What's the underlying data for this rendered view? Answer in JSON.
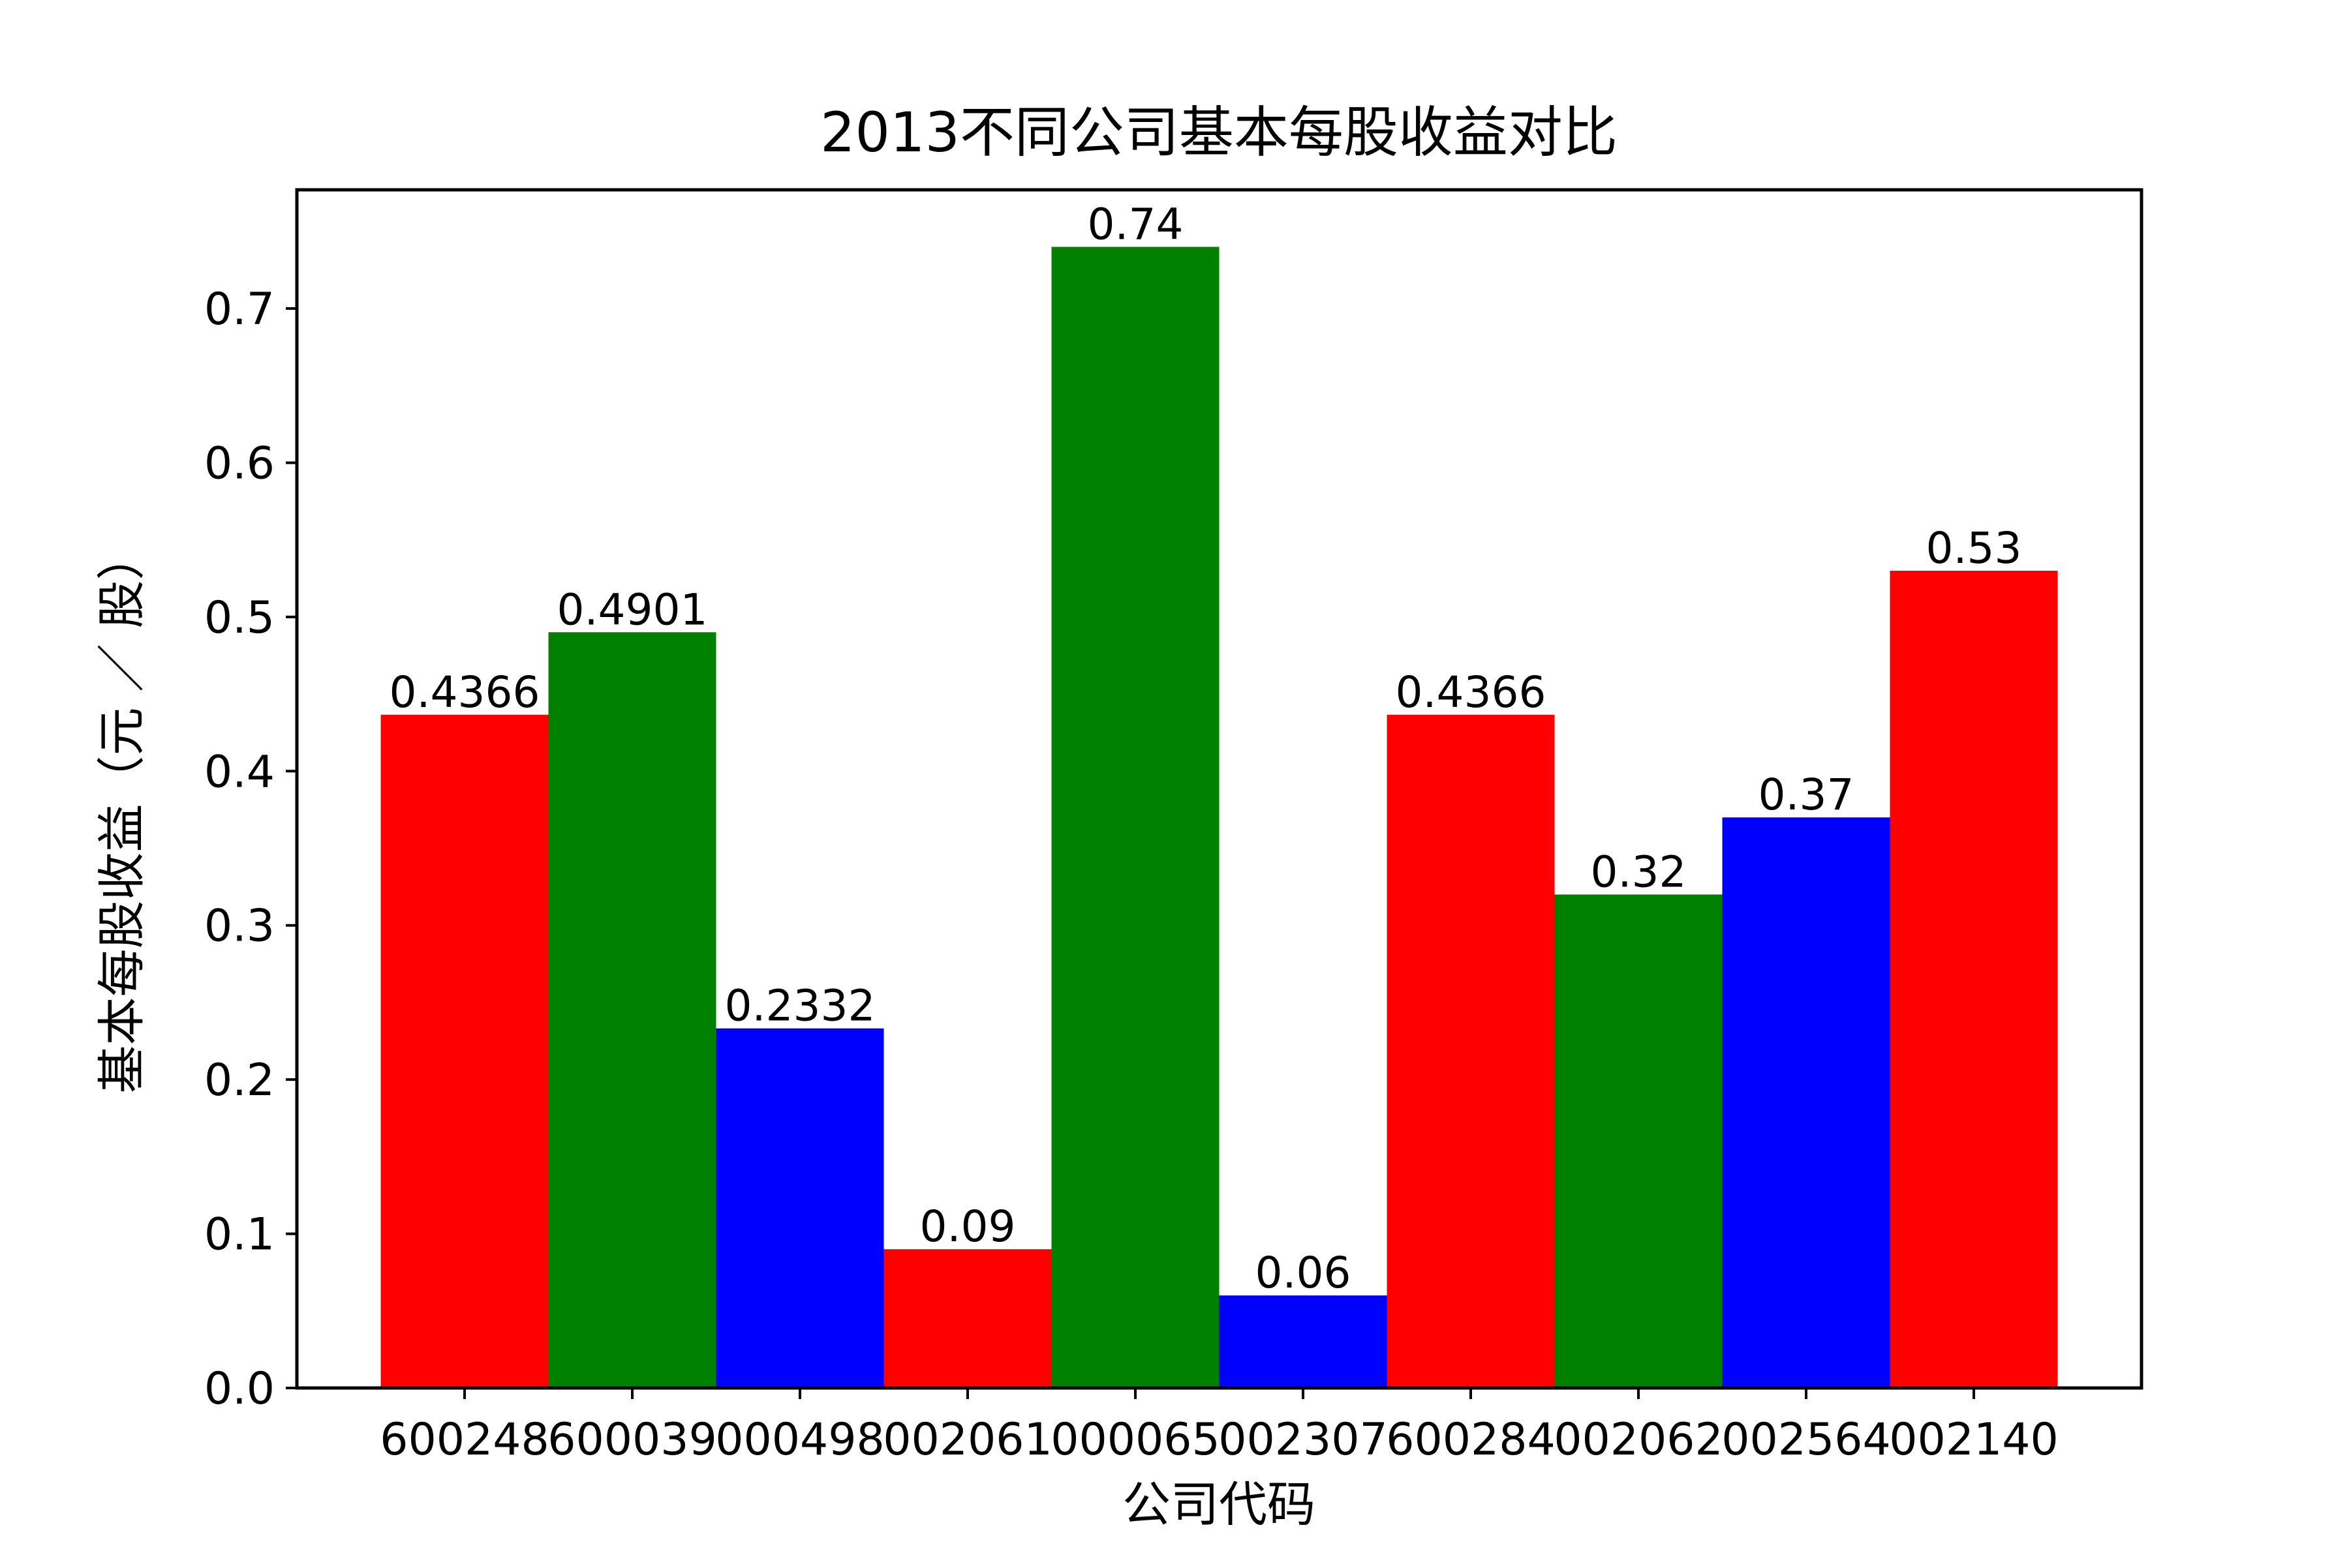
{
  "chart_data": {
    "type": "bar",
    "title": "2013不同公司基本每股收益对比",
    "xlabel": "公司代码",
    "ylabel": "基本每股收益（元 ／ 股）",
    "categories": [
      "600248",
      "600039",
      "000498",
      "002061",
      "000065",
      "002307",
      "600284",
      "002062",
      "002564",
      "002140"
    ],
    "values": [
      0.4366,
      0.4901,
      0.2332,
      0.09,
      0.74,
      0.06,
      0.4366,
      0.32,
      0.37,
      0.53
    ],
    "value_labels": [
      "0.4366",
      "0.4901",
      "0.2332",
      "0.09",
      "0.74",
      "0.06",
      "0.4366",
      "0.32",
      "0.37",
      "0.53"
    ],
    "bar_colors": [
      "#ff0000",
      "#008000",
      "#0000ff",
      "#ff0000",
      "#008000",
      "#0000ff",
      "#ff0000",
      "#008000",
      "#0000ff",
      "#ff0000"
    ],
    "yticks": [
      0.0,
      0.1,
      0.2,
      0.3,
      0.4,
      0.5,
      0.6,
      0.7
    ],
    "ytick_labels": [
      "0.0",
      "0.1",
      "0.2",
      "0.3",
      "0.4",
      "0.5",
      "0.6",
      "0.7"
    ],
    "ylim": [
      0,
      0.777
    ],
    "grid": false,
    "legend": "none"
  }
}
